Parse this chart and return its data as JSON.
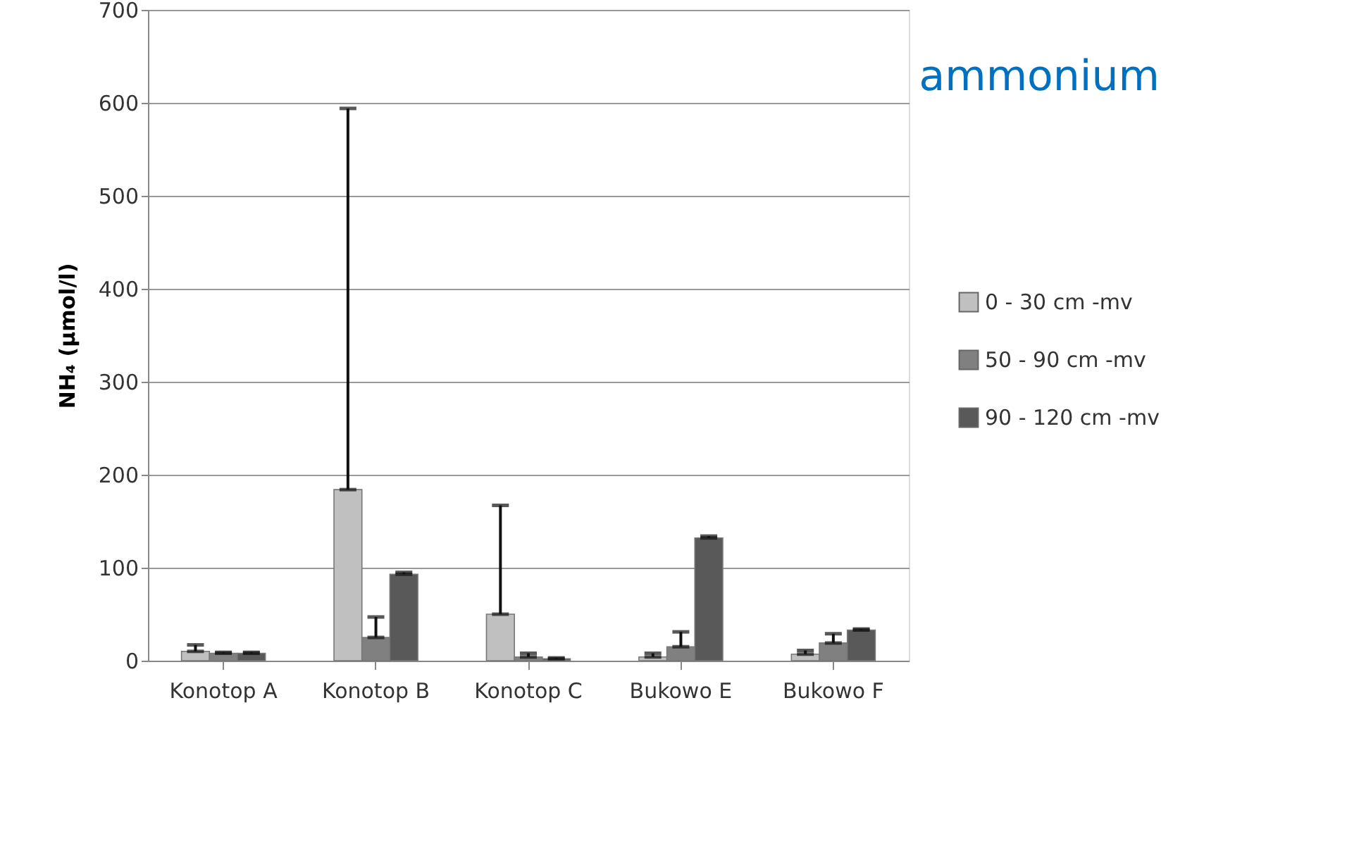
{
  "chart_data": {
    "type": "bar",
    "title": "ammonium",
    "ylabel": "NH₄ (µmol/l)",
    "categories": [
      "Konotop A",
      "Konotop B",
      "Konotop C",
      "Bukowo E",
      "Bukowo F"
    ],
    "series": [
      {
        "name": "0 - 30 cm -mv",
        "color": "#c0c0c0",
        "values": [
          10,
          184,
          50,
          4,
          7
        ],
        "errors": [
          [
            10,
            17
          ],
          [
            184,
            594
          ],
          [
            50,
            167
          ],
          [
            4,
            8
          ],
          [
            7,
            11
          ]
        ]
      },
      {
        "name": "50 - 90 cm -mv",
        "color": "#808080",
        "values": [
          8,
          25,
          4,
          15,
          19
        ],
        "errors": [
          [
            8,
            9
          ],
          [
            25,
            47
          ],
          [
            4,
            8
          ],
          [
            15,
            31
          ],
          [
            19,
            29
          ]
        ]
      },
      {
        "name": "90 - 120 cm -mv",
        "color": "#595959",
        "values": [
          8,
          93,
          2,
          132,
          33
        ],
        "errors": [
          [
            8,
            9
          ],
          [
            93,
            95
          ],
          [
            2,
            3
          ],
          [
            132,
            134
          ],
          [
            33,
            34
          ]
        ]
      }
    ],
    "ylim": [
      0,
      700
    ],
    "yticks": [
      0,
      100,
      200,
      300,
      400,
      500,
      600,
      700
    ],
    "grid": "y",
    "legend": "right"
  }
}
